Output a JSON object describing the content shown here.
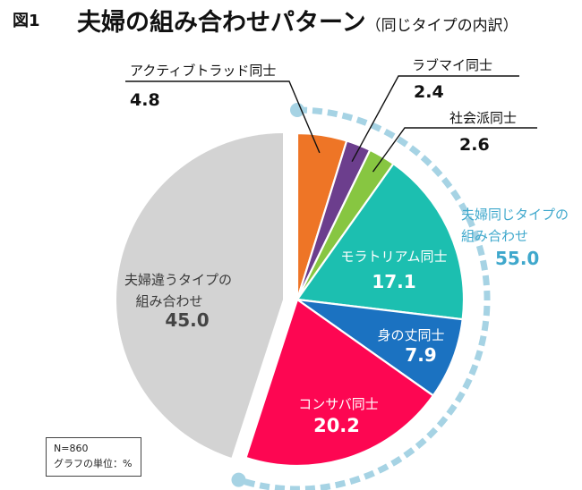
{
  "figure_label": "図1",
  "title": "夫婦の組み合わせパターン",
  "subtitle": "（同じタイプの内訳）",
  "notes": {
    "n": "N=860",
    "unit": "グラフの単位：%"
  },
  "colors": {
    "different_types": "#d3d3d3",
    "active": "#ee7526",
    "love": "#6c3e8d",
    "social": "#87c641",
    "moratorium": "#1cbfb0",
    "modest": "#1b72c1",
    "consabah": "#fd0652",
    "group_accent": "#3fa8cc",
    "ring": "#a6d3e4"
  },
  "chart_data": {
    "type": "pie",
    "unit": "%",
    "slices": [
      {
        "key": "active",
        "name": "アクティブトラッド同士",
        "value": 4.8,
        "display": "4.8"
      },
      {
        "key": "love",
        "name": "ラブマイ同士",
        "value": 2.4,
        "display": "2.4"
      },
      {
        "key": "social",
        "name": "社会派同士",
        "value": 2.6,
        "display": "2.6"
      },
      {
        "key": "moratorium",
        "name": "モラトリアム同士",
        "value": 17.1,
        "display": "17.1"
      },
      {
        "key": "modest",
        "name": "身の丈同士",
        "value": 7.9,
        "display": "7.9"
      },
      {
        "key": "consabah",
        "name": "コンサバ同士",
        "value": 20.2,
        "display": "20.2"
      },
      {
        "key": "different_types",
        "name_lines": [
          "夫婦違うタイプの",
          "組み合わせ"
        ],
        "value": 45.0,
        "display": "45.0"
      }
    ],
    "group": {
      "name_lines": [
        "夫婦同じタイプの",
        "組み合わせ"
      ],
      "value": 55.0,
      "display": "55.0"
    }
  }
}
